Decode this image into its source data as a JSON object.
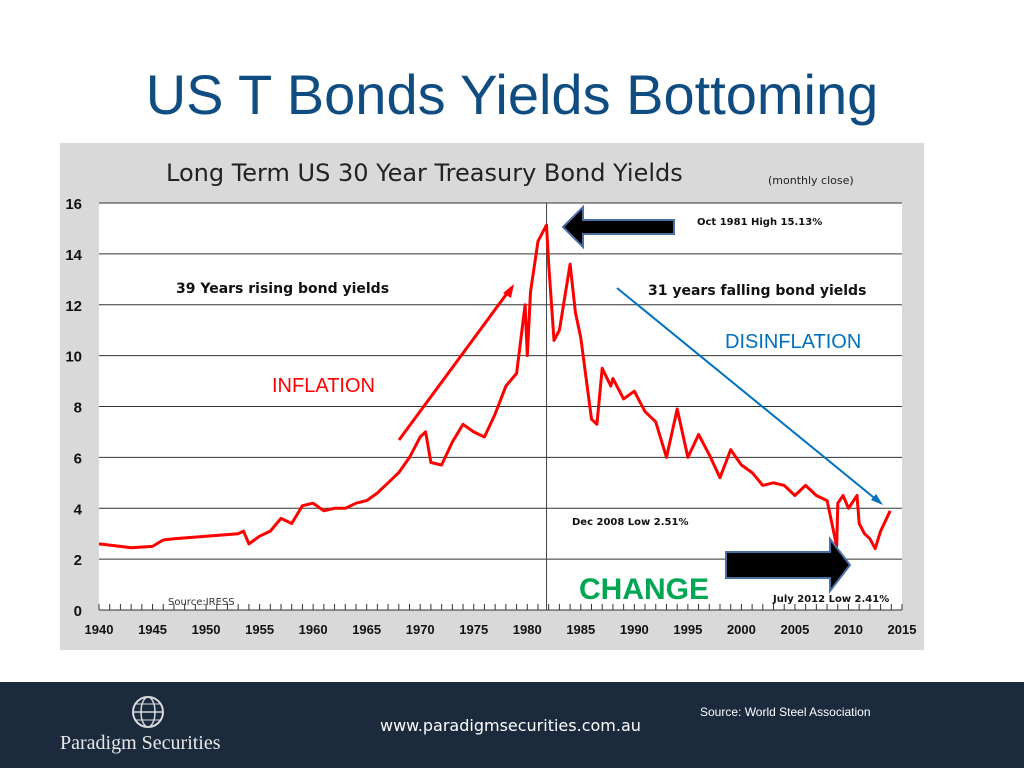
{
  "slide": {
    "title": "US T Bonds Yields Bottoming"
  },
  "footer": {
    "source": "Source: World Steel Association",
    "url": "www.paradigmsecurities.com.au",
    "company": "Paradigm Securities",
    "logo_icon": "globe-icon",
    "background": "#1b2a3c"
  },
  "chart_data": {
    "type": "line",
    "title": "Long Term US 30 Year Treasury Bond Yields",
    "subtitle": "(monthly close)",
    "source": "Source:IRESS",
    "xlim": [
      1940,
      2015
    ],
    "ylim": [
      0,
      16
    ],
    "x_ticks": [
      1940,
      1945,
      1950,
      1955,
      1960,
      1965,
      1970,
      1975,
      1980,
      1985,
      1990,
      1995,
      2000,
      2005,
      2010,
      2015
    ],
    "y_ticks": [
      0,
      2,
      4,
      6,
      8,
      10,
      12,
      14,
      16
    ],
    "grid": true,
    "series": [
      {
        "color": "#ff0000",
        "x": [
          1940,
          1942,
          1943,
          1945,
          1946,
          1947,
          1950,
          1953,
          1953.5,
          1954,
          1955,
          1956,
          1957,
          1958,
          1959,
          1960,
          1961,
          1962,
          1963,
          1964,
          1965,
          1966,
          1967,
          1968,
          1969,
          1970,
          1970.5,
          1971,
          1972,
          1973,
          1974,
          1975,
          1976,
          1977,
          1978,
          1979,
          1979.8,
          1980,
          1980.3,
          1981,
          1981.8,
          1982,
          1982.5,
          1983,
          1984,
          1984.5,
          1985,
          1986,
          1986.5,
          1987,
          1987.8,
          1988,
          1989,
          1990,
          1991,
          1992,
          1993,
          1994,
          1995,
          1996,
          1997,
          1998,
          1999,
          2000,
          2001,
          2002,
          2003,
          2004,
          2005,
          2006,
          2007,
          2008,
          2008.9,
          2009,
          2009.5,
          2010,
          2010.8,
          2011,
          2011.5,
          2012,
          2012.5,
          2013,
          2013.9
        ],
        "y": [
          2.6,
          2.5,
          2.45,
          2.5,
          2.75,
          2.8,
          2.9,
          3.0,
          3.1,
          2.6,
          2.9,
          3.1,
          3.6,
          3.4,
          4.1,
          4.2,
          3.9,
          4.0,
          4.0,
          4.2,
          4.3,
          4.6,
          5.0,
          5.4,
          6.0,
          6.8,
          7.0,
          5.8,
          5.7,
          6.6,
          7.3,
          7.0,
          6.8,
          7.7,
          8.8,
          9.3,
          12.0,
          10.0,
          12.5,
          14.5,
          15.13,
          13.6,
          10.6,
          11.0,
          13.6,
          11.7,
          10.7,
          7.5,
          7.3,
          9.5,
          8.8,
          9.1,
          8.3,
          8.6,
          7.8,
          7.4,
          6.0,
          7.9,
          6.0,
          6.9,
          6.1,
          5.2,
          6.3,
          5.7,
          5.4,
          4.9,
          5.0,
          4.9,
          4.5,
          4.9,
          4.5,
          4.3,
          2.51,
          4.2,
          4.5,
          4.0,
          4.5,
          3.4,
          3.0,
          2.8,
          2.41,
          3.1,
          3.9
        ]
      }
    ],
    "annotations": {
      "rising": "39 Years rising bond yields",
      "falling": "31 years falling bond yields",
      "inflation": "INFLATION",
      "disinflation": "DISINFLATION",
      "change": "CHANGE",
      "high": "Oct 1981 High 15.13%",
      "dec_low": "Dec 2008 Low 2.51%",
      "jul_low": "July 2012 Low 2.41%"
    },
    "colors": {
      "line": "#ff0000",
      "inflation": "#ff0000",
      "disinflation": "#0070c0",
      "change": "#00a651",
      "chart_bg": "#d9d9d9",
      "plot_bg": "#ffffff"
    }
  }
}
